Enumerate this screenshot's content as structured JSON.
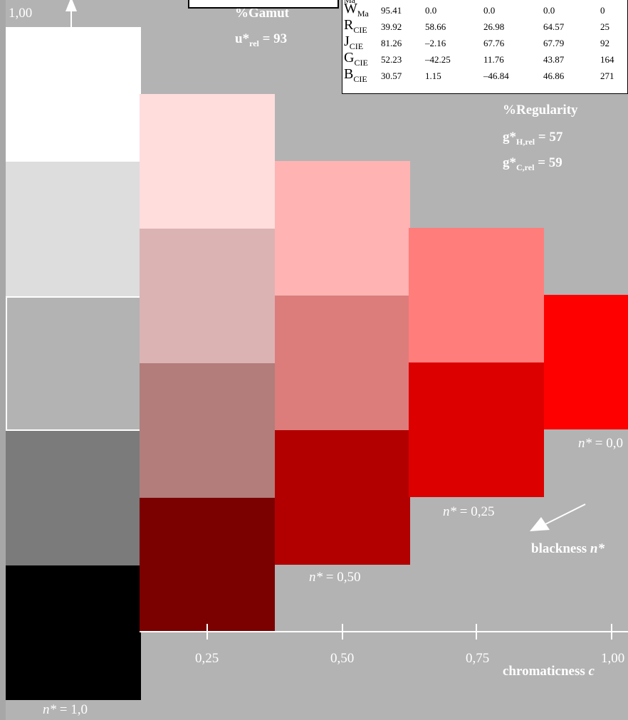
{
  "colors": {
    "background": "#b3b3b3",
    "swatches": {
      "col0": [
        "#ffffff",
        "#dddddd",
        "#b3b3b3",
        "#7b7b7b",
        "#000000"
      ],
      "col1": [
        "#ffdddd",
        "#dcb3b3",
        "#b27d7b",
        "#7b0000"
      ],
      "col2": [
        "#ffb3b3",
        "#dc7d7b",
        "#b20000"
      ],
      "col3": [
        "#ff7d7b",
        "#dc0000"
      ],
      "col4": [
        "#ff0000"
      ]
    }
  },
  "axis": {
    "y_top_label": "1,00",
    "x_tick_labels": [
      "0,25",
      "0,50",
      "0,75",
      "1,00"
    ],
    "x_axis_label": "chromaticness c"
  },
  "labels": {
    "gamut_title": "%Gamut",
    "gamut_value": "u*rel = 93",
    "regularity_title": "%Regularity",
    "g_h": "g*H,rel = 57",
    "g_c": "g*C,rel = 59",
    "blackness": "blackness n*",
    "n_values": [
      "n* = 1,0",
      "n* = 0,50",
      "n* = 0,25",
      "n* = 0,0"
    ]
  },
  "table": {
    "rows": [
      {
        "label": "W",
        "sub": "Ma",
        "values": [
          "95.41",
          "0.0",
          "0.0",
          "0.0",
          "0"
        ]
      },
      {
        "label": "R",
        "sub": "CIE",
        "values": [
          "39.92",
          "58.66",
          "26.98",
          "64.57",
          "25"
        ]
      },
      {
        "label": "J",
        "sub": "CIE",
        "values": [
          "81.26",
          "–2.16",
          "67.76",
          "67.79",
          "92"
        ]
      },
      {
        "label": "G",
        "sub": "CIE",
        "values": [
          "52.23",
          "–42.25",
          "11.76",
          "43.87",
          "164"
        ]
      },
      {
        "label": "B",
        "sub": "CIE",
        "values": [
          "30.57",
          "1.15",
          "–46.84",
          "46.86",
          "271"
        ]
      }
    ],
    "cutoff_label": "Ma"
  }
}
